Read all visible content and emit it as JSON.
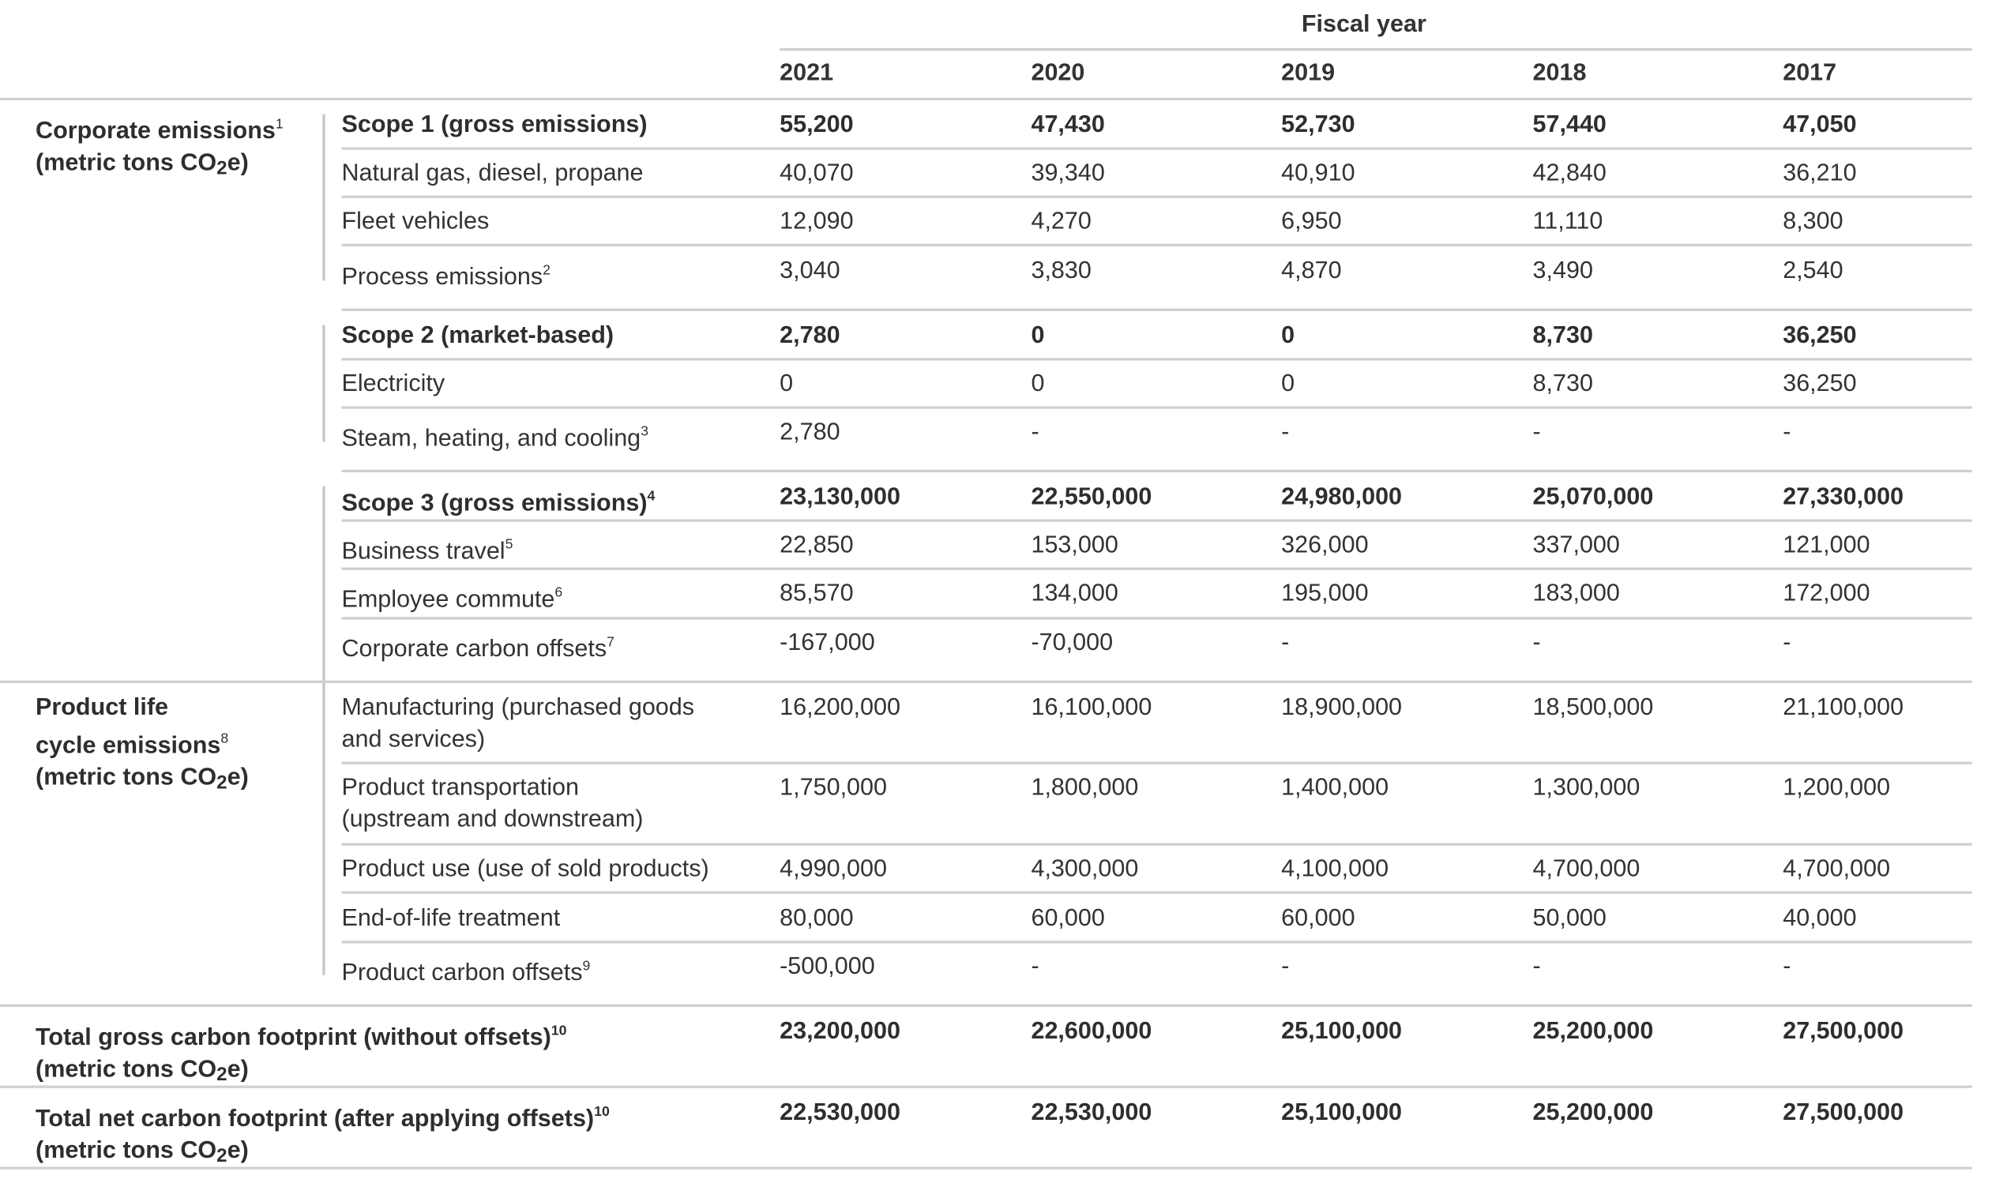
{
  "header": {
    "fiscal_year_label": "Fiscal year",
    "years": [
      "2021",
      "2020",
      "2019",
      "2018",
      "2017"
    ]
  },
  "groups": {
    "corporate": {
      "label_line1": "Corporate emissions",
      "label_sup": "1",
      "label_line2_pre": "(metric tons CO",
      "label_line2_sub": "2",
      "label_line2_post": "e)"
    },
    "product": {
      "label_line1": "Product life",
      "label_line2": "cycle emissions",
      "label_sup": "8",
      "label_line3_pre": "(metric tons CO",
      "label_line3_sub": "2",
      "label_line3_post": "e)"
    }
  },
  "rows": [
    {
      "label": "Scope 1 (gross emissions)",
      "sup": "",
      "bold": true,
      "values": [
        "55,200",
        "47,430",
        "52,730",
        "57,440",
        "47,050"
      ]
    },
    {
      "label": "Natural gas, diesel, propane",
      "sup": "",
      "bold": false,
      "values": [
        "40,070",
        "39,340",
        "40,910",
        "42,840",
        "36,210"
      ]
    },
    {
      "label": "Fleet vehicles",
      "sup": "",
      "bold": false,
      "values": [
        "12,090",
        "4,270",
        "6,950",
        "11,110",
        "8,300"
      ]
    },
    {
      "label": "Process emissions",
      "sup": "2",
      "bold": false,
      "values": [
        "3,040",
        "3,830",
        "4,870",
        "3,490",
        "2,540"
      ]
    },
    {
      "label": "Scope 2 (market-based)",
      "sup": "",
      "bold": true,
      "values": [
        "2,780",
        "0",
        "0",
        "8,730",
        "36,250"
      ]
    },
    {
      "label": "Electricity",
      "sup": "",
      "bold": false,
      "values": [
        "0",
        "0",
        "0",
        "8,730",
        "36,250"
      ]
    },
    {
      "label": "Steam, heating, and cooling",
      "sup": "3",
      "bold": false,
      "values": [
        "2,780",
        "-",
        "-",
        "-",
        "-"
      ]
    },
    {
      "label": "Scope 3 (gross emissions)",
      "sup": "4",
      "bold": true,
      "values": [
        "23,130,000",
        "22,550,000",
        "24,980,000",
        "25,070,000",
        "27,330,000"
      ]
    },
    {
      "label": "Business travel",
      "sup": "5",
      "bold": false,
      "values": [
        "22,850",
        "153,000",
        "326,000",
        "337,000",
        "121,000"
      ]
    },
    {
      "label": "Employee commute",
      "sup": "6",
      "bold": false,
      "values": [
        "85,570",
        "134,000",
        "195,000",
        "183,000",
        "172,000"
      ]
    },
    {
      "label": "Corporate carbon offsets",
      "sup": "7",
      "bold": false,
      "values": [
        "-167,000",
        "-70,000",
        "-",
        "-",
        "-"
      ]
    },
    {
      "label": "Manufacturing (purchased goods",
      "label2": "and services)",
      "sup": "",
      "bold": false,
      "values": [
        "16,200,000",
        "16,100,000",
        "18,900,000",
        "18,500,000",
        "21,100,000"
      ]
    },
    {
      "label": "Product transportation",
      "label2": "(upstream and downstream)",
      "sup": "",
      "bold": false,
      "values": [
        "1,750,000",
        "1,800,000",
        "1,400,000",
        "1,300,000",
        "1,200,000"
      ]
    },
    {
      "label": "Product use (use of sold products)",
      "sup": "",
      "bold": false,
      "values": [
        "4,990,000",
        "4,300,000",
        "4,100,000",
        "4,700,000",
        "4,700,000"
      ]
    },
    {
      "label": "End-of-life treatment",
      "sup": "",
      "bold": false,
      "values": [
        "80,000",
        "60,000",
        "60,000",
        "50,000",
        "40,000"
      ]
    },
    {
      "label": "Product carbon offsets",
      "sup": "9",
      "bold": false,
      "values": [
        "-500,000",
        "-",
        "-",
        "-",
        "-"
      ]
    }
  ],
  "totals": [
    {
      "label": "Total gross carbon footprint (without offsets)",
      "sup": "10",
      "unit_pre": "(metric tons CO",
      "unit_sub": "2",
      "unit_post": "e)",
      "values": [
        "23,200,000",
        "22,600,000",
        "25,100,000",
        "25,200,000",
        "27,500,000"
      ]
    },
    {
      "label": "Total net carbon footprint (after applying offsets)",
      "sup": "10",
      "unit_pre": "(metric tons CO",
      "unit_sub": "2",
      "unit_post": "e)",
      "values": [
        "22,530,000",
        "22,530,000",
        "25,100,000",
        "25,200,000",
        "27,500,000"
      ]
    }
  ]
}
